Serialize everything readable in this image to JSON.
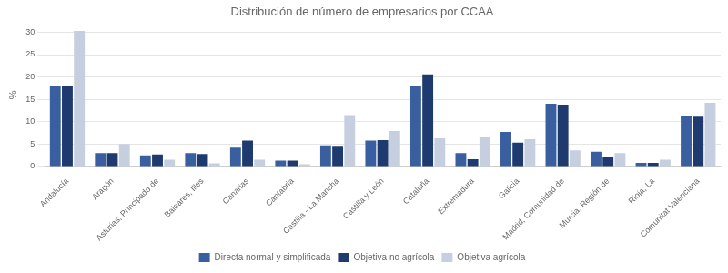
{
  "chart_data": {
    "type": "bar",
    "title": "Distribución de número de empresarios por CCAA",
    "ylabel": "%",
    "categories": [
      "Andalucía",
      "Aragón",
      "Asturias, Principado de",
      "Baleares, Illes",
      "Canarias",
      "Cantabria",
      "Castilla - La Mancha",
      "Castilla y León",
      "Cataluña",
      "Extremadura",
      "Galicia",
      "Madrid, Comunidad de",
      "Murcia, Región de",
      "Rioja, La",
      "Comunitat Valenciana"
    ],
    "series": [
      {
        "name": "Directa normal y simplificada",
        "color": "#3a5fa0",
        "values": [
          18.0,
          3.0,
          2.5,
          3.0,
          4.2,
          1.3,
          4.7,
          5.8,
          18.1,
          3.0,
          7.7,
          14.0,
          3.3,
          0.8,
          11.2
        ]
      },
      {
        "name": "Objetiva no agrícola",
        "color": "#1f3a6e",
        "values": [
          18.0,
          3.0,
          2.7,
          2.8,
          5.8,
          1.3,
          4.6,
          5.9,
          20.6,
          1.6,
          5.3,
          13.8,
          2.2,
          0.8,
          11.1
        ]
      },
      {
        "name": "Objetiva agrícola",
        "color": "#c5cfe0",
        "values": [
          30.3,
          5.0,
          1.5,
          0.7,
          1.5,
          0.5,
          11.5,
          7.9,
          6.3,
          6.5,
          6.1,
          3.6,
          3.0,
          1.5,
          14.2
        ]
      }
    ],
    "ylim": [
      0,
      32
    ],
    "yticks": [
      0,
      5,
      10,
      15,
      20,
      25,
      30
    ],
    "grid": true,
    "legend": "bottom"
  }
}
